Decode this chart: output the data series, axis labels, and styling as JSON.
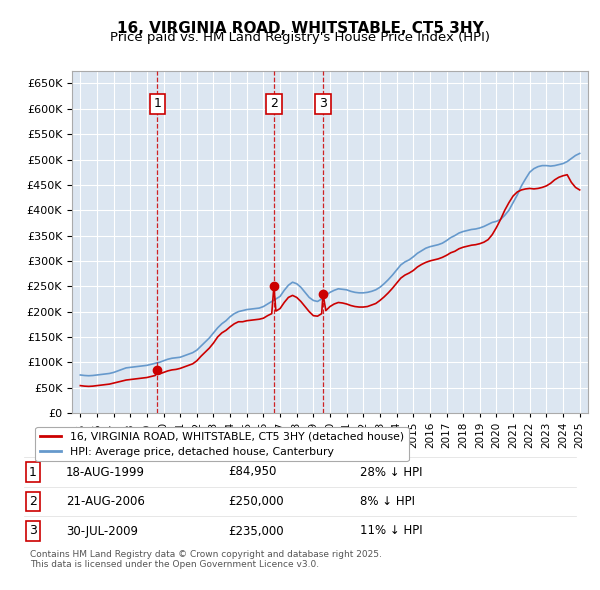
{
  "title": "16, VIRGINIA ROAD, WHITSTABLE, CT5 3HY",
  "subtitle": "Price paid vs. HM Land Registry's House Price Index (HPI)",
  "legend_label_red": "16, VIRGINIA ROAD, WHITSTABLE, CT5 3HY (detached house)",
  "legend_label_blue": "HPI: Average price, detached house, Canterbury",
  "copyright": "Contains HM Land Registry data © Crown copyright and database right 2025.\nThis data is licensed under the Open Government Licence v3.0.",
  "transactions": [
    {
      "num": 1,
      "date": "18-AUG-1999",
      "price": "£84,950",
      "hpi_rel": "28% ↓ HPI",
      "year": 1999.63
    },
    {
      "num": 2,
      "date": "21-AUG-2006",
      "price": "£250,000",
      "hpi_rel": "8% ↓ HPI",
      "year": 2006.63
    },
    {
      "num": 3,
      "date": "30-JUL-2009",
      "price": "£235,000",
      "hpi_rel": "11% ↓ HPI",
      "year": 2009.58
    }
  ],
  "ylim": [
    0,
    675000
  ],
  "xlim": [
    1994.5,
    2025.5
  ],
  "background_color": "#dce6f1",
  "plot_bg_color": "#dce6f1",
  "grid_color": "#ffffff",
  "red_color": "#cc0000",
  "blue_color": "#6699cc",
  "hpi_data": {
    "years": [
      1995,
      1995.25,
      1995.5,
      1995.75,
      1996,
      1996.25,
      1996.5,
      1996.75,
      1997,
      1997.25,
      1997.5,
      1997.75,
      1998,
      1998.25,
      1998.5,
      1998.75,
      1999,
      1999.25,
      1999.5,
      1999.75,
      2000,
      2000.25,
      2000.5,
      2000.75,
      2001,
      2001.25,
      2001.5,
      2001.75,
      2002,
      2002.25,
      2002.5,
      2002.75,
      2003,
      2003.25,
      2003.5,
      2003.75,
      2004,
      2004.25,
      2004.5,
      2004.75,
      2005,
      2005.25,
      2005.5,
      2005.75,
      2006,
      2006.25,
      2006.5,
      2006.75,
      2007,
      2007.25,
      2007.5,
      2007.75,
      2008,
      2008.25,
      2008.5,
      2008.75,
      2009,
      2009.25,
      2009.5,
      2009.75,
      2010,
      2010.25,
      2010.5,
      2010.75,
      2011,
      2011.25,
      2011.5,
      2011.75,
      2012,
      2012.25,
      2012.5,
      2012.75,
      2013,
      2013.25,
      2013.5,
      2013.75,
      2014,
      2014.25,
      2014.5,
      2014.75,
      2015,
      2015.25,
      2015.5,
      2015.75,
      2016,
      2016.25,
      2016.5,
      2016.75,
      2017,
      2017.25,
      2017.5,
      2017.75,
      2018,
      2018.25,
      2018.5,
      2018.75,
      2019,
      2019.25,
      2019.5,
      2019.75,
      2020,
      2020.25,
      2020.5,
      2020.75,
      2021,
      2021.25,
      2021.5,
      2021.75,
      2022,
      2022.25,
      2022.5,
      2022.75,
      2023,
      2023.25,
      2023.5,
      2023.75,
      2024,
      2024.25,
      2024.5,
      2024.75,
      2025
    ],
    "values": [
      75000,
      74000,
      73500,
      74000,
      75000,
      76000,
      77000,
      78000,
      80000,
      83000,
      86000,
      89000,
      90000,
      91000,
      92000,
      93000,
      94000,
      96000,
      98000,
      100000,
      103000,
      106000,
      108000,
      109000,
      110000,
      113000,
      116000,
      119000,
      124000,
      132000,
      140000,
      148000,
      158000,
      168000,
      176000,
      182000,
      190000,
      196000,
      200000,
      202000,
      204000,
      205000,
      206000,
      207000,
      210000,
      215000,
      220000,
      225000,
      230000,
      242000,
      252000,
      258000,
      255000,
      248000,
      238000,
      228000,
      222000,
      220000,
      225000,
      232000,
      238000,
      242000,
      245000,
      244000,
      243000,
      240000,
      238000,
      237000,
      237000,
      238000,
      240000,
      243000,
      248000,
      255000,
      263000,
      272000,
      282000,
      292000,
      298000,
      302000,
      308000,
      315000,
      320000,
      325000,
      328000,
      330000,
      332000,
      335000,
      340000,
      346000,
      350000,
      355000,
      358000,
      360000,
      362000,
      363000,
      365000,
      368000,
      372000,
      376000,
      378000,
      382000,
      390000,
      400000,
      415000,
      430000,
      448000,
      462000,
      475000,
      482000,
      486000,
      488000,
      488000,
      487000,
      488000,
      490000,
      492000,
      496000,
      502000,
      508000,
      512000
    ]
  },
  "red_data": {
    "years": [
      1995,
      1995.25,
      1995.5,
      1995.75,
      1996,
      1996.25,
      1996.5,
      1996.75,
      1997,
      1997.25,
      1997.5,
      1997.75,
      1998,
      1998.25,
      1998.5,
      1998.75,
      1999,
      1999.25,
      1999.5,
      1999.63,
      1999.75,
      2000,
      2000.25,
      2000.5,
      2000.75,
      2001,
      2001.25,
      2001.5,
      2001.75,
      2002,
      2002.25,
      2002.5,
      2002.75,
      2003,
      2003.25,
      2003.5,
      2003.75,
      2004,
      2004.25,
      2004.5,
      2004.75,
      2005,
      2005.25,
      2005.5,
      2005.75,
      2006,
      2006.25,
      2006.5,
      2006.63,
      2006.75,
      2007,
      2007.25,
      2007.5,
      2007.75,
      2008,
      2008.25,
      2008.5,
      2008.75,
      2009,
      2009.25,
      2009.5,
      2009.58,
      2009.75,
      2010,
      2010.25,
      2010.5,
      2010.75,
      2011,
      2011.25,
      2011.5,
      2011.75,
      2012,
      2012.25,
      2012.5,
      2012.75,
      2013,
      2013.25,
      2013.5,
      2013.75,
      2014,
      2014.25,
      2014.5,
      2014.75,
      2015,
      2015.25,
      2015.5,
      2015.75,
      2016,
      2016.25,
      2016.5,
      2016.75,
      2017,
      2017.25,
      2017.5,
      2017.75,
      2018,
      2018.25,
      2018.5,
      2018.75,
      2019,
      2019.25,
      2019.5,
      2019.75,
      2020,
      2020.25,
      2020.5,
      2020.75,
      2021,
      2021.25,
      2021.5,
      2021.75,
      2022,
      2022.25,
      2022.5,
      2022.75,
      2023,
      2023.25,
      2023.5,
      2023.75,
      2024,
      2024.25,
      2024.5,
      2024.75,
      2025
    ],
    "values": [
      54000,
      53000,
      52500,
      53000,
      54000,
      55000,
      56000,
      57000,
      59000,
      61000,
      63000,
      65000,
      66000,
      67000,
      68000,
      69000,
      70000,
      72000,
      74000,
      84950,
      77000,
      80000,
      83000,
      85000,
      86000,
      88000,
      91000,
      94000,
      97000,
      103000,
      112000,
      120000,
      128000,
      138000,
      150000,
      158000,
      163000,
      170000,
      176000,
      180000,
      180000,
      182000,
      183000,
      184000,
      185000,
      187000,
      192000,
      196000,
      250000,
      201000,
      206000,
      218000,
      228000,
      232000,
      228000,
      220000,
      210000,
      200000,
      192000,
      191000,
      196000,
      235000,
      202000,
      210000,
      215000,
      218000,
      217000,
      215000,
      212000,
      210000,
      209000,
      209000,
      210000,
      213000,
      216000,
      222000,
      229000,
      237000,
      246000,
      256000,
      266000,
      272000,
      276000,
      281000,
      288000,
      293000,
      297000,
      300000,
      302000,
      304000,
      307000,
      311000,
      316000,
      319000,
      324000,
      327000,
      329000,
      331000,
      332000,
      334000,
      337000,
      342000,
      352000,
      366000,
      382000,
      400000,
      415000,
      428000,
      436000,
      440000,
      442000,
      443000,
      442000,
      443000,
      445000,
      448000,
      453000,
      460000,
      465000,
      468000,
      470000,
      455000,
      445000,
      440000
    ]
  }
}
